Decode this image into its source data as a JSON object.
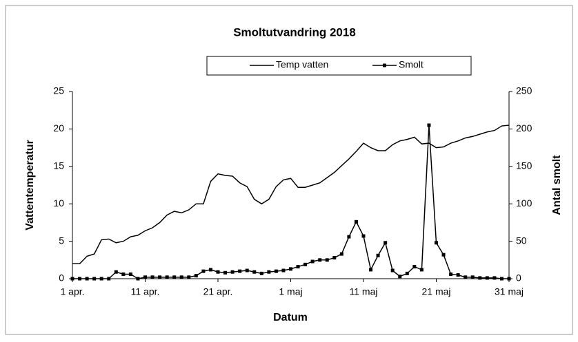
{
  "chart_data": {
    "type": "line",
    "title": "Smoltutvandring 2018",
    "xlabel": "Datum",
    "ylabel": "Vattentemperatur",
    "y2label": "Antal smolt",
    "x": [
      0,
      1,
      2,
      3,
      4,
      5,
      6,
      7,
      8,
      9,
      10,
      11,
      12,
      13,
      14,
      15,
      16,
      17,
      18,
      19,
      20,
      21,
      22,
      23,
      24,
      25,
      26,
      27,
      28,
      29,
      30,
      31,
      32,
      33,
      34,
      35,
      36,
      37,
      38,
      39,
      40,
      41,
      42,
      43,
      44,
      45,
      46,
      47,
      48,
      49,
      50,
      51,
      52,
      53,
      54,
      55,
      56,
      57,
      58,
      59,
      60
    ],
    "xlim": [
      0,
      60
    ],
    "xticks": [
      {
        "value": 0,
        "label": "1 apr."
      },
      {
        "value": 10,
        "label": "11 apr."
      },
      {
        "value": 20,
        "label": "21 apr."
      },
      {
        "value": 30,
        "label": "1 maj"
      },
      {
        "value": 40,
        "label": "11 maj"
      },
      {
        "value": 50,
        "label": "21 maj"
      },
      {
        "value": 60,
        "label": "31 maj"
      }
    ],
    "ylim": [
      0,
      25
    ],
    "yticks": [
      0,
      5,
      10,
      15,
      20,
      25
    ],
    "y2lim": [
      0,
      250
    ],
    "y2ticks": [
      0,
      50,
      100,
      150,
      200,
      250
    ],
    "series": [
      {
        "name": "Temp vatten",
        "color": "#000000",
        "marker": false,
        "values": [
          2,
          2,
          3,
          3.3,
          5.2,
          5.3,
          4.8,
          5,
          5.6,
          5.8,
          6.4,
          6.8,
          7.5,
          8.5,
          9,
          8.8,
          9.2,
          10,
          10,
          13,
          14,
          13.8,
          13.7,
          12.8,
          12.3,
          10.6,
          10,
          10.6,
          12.3,
          13.2,
          13.4,
          12.2,
          12.2,
          12.5,
          12.8,
          13.5,
          14.2,
          15.1,
          16,
          17,
          18.1,
          17.5,
          17.1,
          17.1,
          17.9,
          18.4,
          18.6,
          18.9,
          18,
          18.1,
          17.5,
          17.6,
          18.1,
          18.4,
          18.8,
          19,
          19.3,
          19.6,
          19.8,
          20.4,
          20.5
        ]
      },
      {
        "name": "Smolt",
        "color": "#000000",
        "marker": true,
        "axis": "y2",
        "values": [
          0,
          0,
          0,
          0,
          0,
          0,
          9,
          6,
          6,
          0,
          2,
          2,
          2,
          2,
          2,
          2,
          2,
          4,
          10,
          12,
          9,
          8,
          9,
          10,
          11,
          9,
          7,
          9,
          10,
          11,
          13,
          16,
          19,
          23,
          25,
          25,
          28,
          33,
          56,
          76,
          57,
          12,
          31,
          48,
          11,
          3,
          7,
          16,
          12,
          205,
          48,
          32,
          6,
          5,
          2,
          2,
          1,
          1,
          1,
          0,
          0
        ]
      }
    ]
  }
}
